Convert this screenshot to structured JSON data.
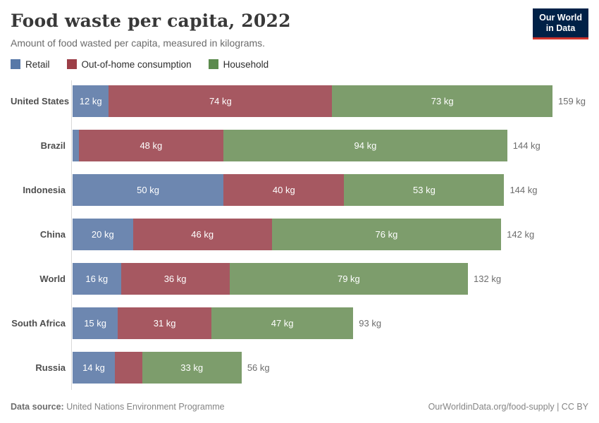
{
  "header": {
    "title": "Food waste per capita, 2022",
    "subtitle": "Amount of food wasted per capita, measured in kilograms.",
    "logo": {
      "line1": "Our World",
      "line2": "in Data",
      "bg_color": "#002147",
      "accent_color": "#d0342c"
    }
  },
  "chart_data": {
    "type": "bar",
    "orientation": "horizontal",
    "stacked": true,
    "unit": "kg",
    "xlim": [
      0,
      159
    ],
    "grid": false,
    "legend_position": "top",
    "categories": [
      "United States",
      "Brazil",
      "Indonesia",
      "China",
      "World",
      "South Africa",
      "Russia"
    ],
    "series": [
      {
        "name": "Retail",
        "legend_color": "#5778a8",
        "bar_color": "#6d87b0",
        "values": [
          12,
          2,
          50,
          20,
          16,
          15,
          14
        ]
      },
      {
        "name": "Out-of-home consumption",
        "legend_color": "#9c3e47",
        "bar_color": "#a65861",
        "values": [
          74,
          48,
          40,
          46,
          36,
          31,
          9
        ]
      },
      {
        "name": "Household",
        "legend_color": "#5b8b4d",
        "bar_color": "#7d9d6c",
        "values": [
          73,
          94,
          53,
          76,
          79,
          47,
          33
        ]
      }
    ],
    "segment_labels": [
      [
        "12 kg",
        "74 kg",
        "73 kg"
      ],
      [
        "",
        "48 kg",
        "94 kg"
      ],
      [
        "50 kg",
        "40 kg",
        "53 kg"
      ],
      [
        "20 kg",
        "46 kg",
        "76 kg"
      ],
      [
        "16 kg",
        "36 kg",
        "79 kg"
      ],
      [
        "15 kg",
        "31 kg",
        "47 kg"
      ],
      [
        "14 kg",
        "",
        "33 kg"
      ]
    ],
    "totals": [
      159,
      144,
      144,
      142,
      132,
      93,
      56
    ],
    "total_labels": [
      "159 kg",
      "144 kg",
      "144 kg",
      "142 kg",
      "132 kg",
      "93 kg",
      "56 kg"
    ]
  },
  "footer": {
    "datasource_label": "Data source:",
    "datasource_value": "United Nations Environment Programme",
    "attribution": "OurWorldinData.org/food-supply | CC BY"
  }
}
